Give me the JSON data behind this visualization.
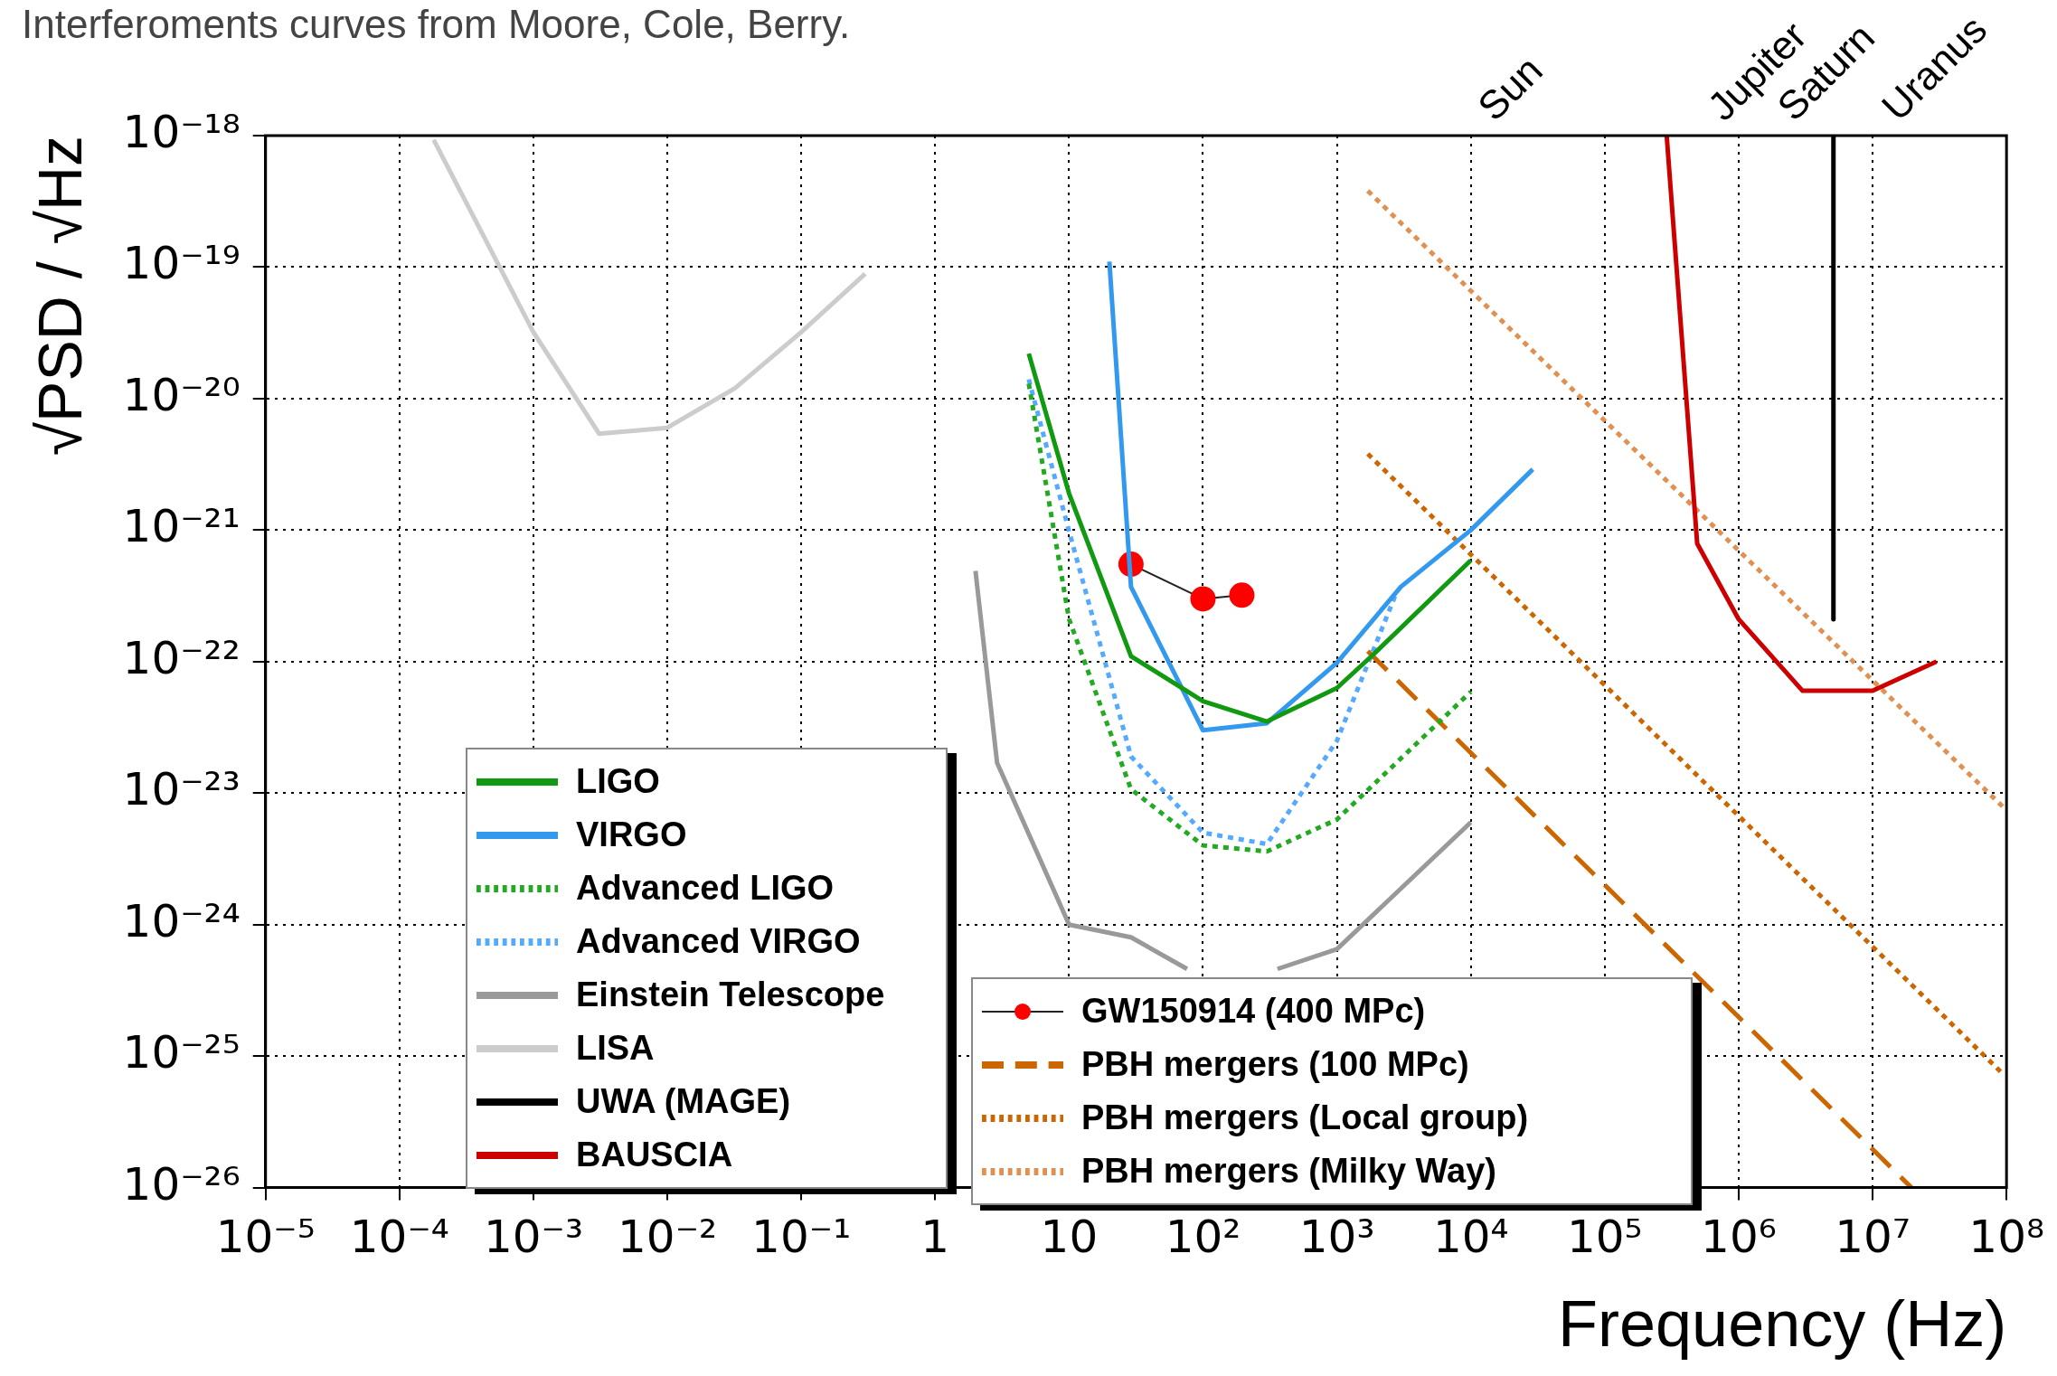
{
  "chart_data": {
    "type": "line",
    "xlabel": "Frequency (Hz)",
    "ylabel": "√PSD / √Hz",
    "log": "xy",
    "grid": true,
    "legend": "bottom left",
    "marker": "none",
    "xlim": [
      1e-05,
      100000000.0
    ],
    "xticks": [
      {
        "value": 1e-05,
        "label": "10⁻⁵"
      },
      {
        "value": 0.0001,
        "label": "10⁻⁴"
      },
      {
        "value": 0.001,
        "label": "10⁻³"
      },
      {
        "value": 0.01,
        "label": "10⁻²"
      },
      {
        "value": 0.1,
        "label": "10⁻¹"
      },
      1,
      10,
      {
        "value": 100,
        "label": "10²"
      },
      {
        "value": 1000,
        "label": "10³"
      },
      {
        "value": 10000.0,
        "label": "10⁴"
      },
      {
        "value": 100000.0,
        "label": "10⁵"
      },
      {
        "value": 1000000.0,
        "label": "10⁶"
      },
      {
        "value": 10000000.0,
        "label": "10⁷"
      },
      {
        "value": 100000000.0,
        "label": "10⁸"
      }
    ],
    "ylim": [
      1e-26,
      1e-18
    ],
    "yticks": [
      {
        "value": 1e-26,
        "label": "10⁻²⁶"
      },
      {
        "value": 1e-25,
        "label": "10⁻²⁵"
      },
      {
        "value": 1e-24,
        "label": "10⁻²⁴"
      },
      {
        "value": 1e-23,
        "label": "10⁻²³"
      },
      {
        "value": 1e-22,
        "label": "10⁻²²"
      },
      {
        "value": 1e-21,
        "label": "10⁻²¹"
      },
      {
        "value": 1e-20,
        "label": "10⁻²⁰"
      },
      {
        "value": 1e-19,
        "label": "10⁻¹⁹"
      },
      {
        "value": 1e-18,
        "label": "10⁻¹⁸"
      }
    ],
    "series": [
      {
        "name": "LIGO",
        "color": "#119911",
        "line_style": "solid",
        "x": [
          5,
          10,
          29,
          100,
          300,
          1000,
          1900,
          10000
        ],
        "values": [
          2.2e-20,
          1.9e-21,
          1.1e-22,
          5e-23,
          3.5e-23,
          6.3e-23,
          1.15e-22,
          5.9e-22
        ]
      },
      {
        "name": "VIRGO",
        "color": "#3399ee",
        "line_style": "solid",
        "x": [
          20,
          29,
          100,
          300,
          1000,
          3000,
          10000,
          29000
        ],
        "values": [
          1.1e-19,
          3.7e-22,
          3e-23,
          3.4e-23,
          9.8e-23,
          3.7e-22,
          1e-21,
          2.9e-21
        ]
      },
      {
        "name": "Advanced LIGO",
        "color": "#22aa22",
        "line_style": "dotted",
        "x": [
          5,
          10,
          29,
          100,
          300,
          1000,
          10000
        ],
        "values": [
          1.3e-20,
          2.1e-22,
          1.07e-23,
          4e-24,
          3.6e-24,
          6.3e-24,
          5.9e-23
        ]
      },
      {
        "name": "Advanced VIRGO",
        "color": "#55aaff",
        "line_style": "dotted",
        "x": [
          5,
          10,
          29,
          100,
          300,
          1000,
          2800
        ],
        "values": [
          1.4e-20,
          9.8e-22,
          1.9e-23,
          5e-24,
          4.1e-24,
          2.5e-23,
          3.4e-22
        ]
      },
      {
        "name": "Einstein Telescope",
        "color": "#999999",
        "line_style": "solid",
        "x": [
          2,
          2.9,
          10,
          29,
          76,
          150,
          360,
          1000,
          10000
        ],
        "values": [
          4.9e-22,
          1.7e-23,
          1e-24,
          8e-25,
          4.6e-25,
          null,
          4.6e-25,
          6.5e-25,
          6e-24
        ]
      },
      {
        "name": "LISA",
        "color": "#cccccc",
        "line_style": "solid",
        "x": [
          0.00018,
          0.001,
          0.0031,
          0.01,
          0.032,
          0.1,
          0.3
        ],
        "values": [
          9.3e-19,
          3.2e-20,
          5.4e-21,
          6e-21,
          1.2e-20,
          3.2e-20,
          8.9e-20
        ]
      },
      {
        "name": "UWA (MAGE)",
        "color": "#000000",
        "line_style": "solid",
        "x": [
          5100000.0,
          5100000.0
        ],
        "values": [
          1e-18,
          2.1e-22
        ]
      },
      {
        "name": "BAUSCIA",
        "color": "#cc0000",
        "line_style": "solid",
        "x": [
          290000.0,
          490000.0,
          1000000.0,
          3000000.0,
          10000000.0,
          30000000.0
        ],
        "values": [
          1e-18,
          7.9e-22,
          2.1e-22,
          6e-23,
          6e-23,
          1e-22
        ]
      },
      {
        "name": "GW150914 (400 MPc)",
        "color": "#ff0000",
        "line_style": "solid",
        "marker": "circle",
        "x": [
          29,
          100,
          195
        ],
        "values": [
          5.5e-22,
          3e-22,
          3.2e-22
        ]
      },
      {
        "name": "PBH mergers (100 MPc)",
        "color": "#cc6600",
        "line_style": "dashed",
        "x": [
          1700,
          19500000.0
        ],
        "values": [
          1.2e-22,
          1e-26
        ]
      },
      {
        "name": "PBH mergers (Local group)",
        "color": "#cc6600",
        "line_style": "dotted",
        "x": [
          1700,
          93000000.0
        ],
        "values": [
          3.8e-21,
          7.4e-26
        ]
      },
      {
        "name": "PBH mergers (Milky Way)",
        "color": "#e09050",
        "line_style": "dotted",
        "x": [
          1700,
          100000000.0
        ],
        "values": [
          3.8e-19,
          7.4e-24
        ]
      }
    ],
    "annotations": [
      "Interferoments curves from Moore, Cole, Berry.",
      "Sun",
      "Jupiter",
      "Saturn",
      "Uranus"
    ]
  }
}
